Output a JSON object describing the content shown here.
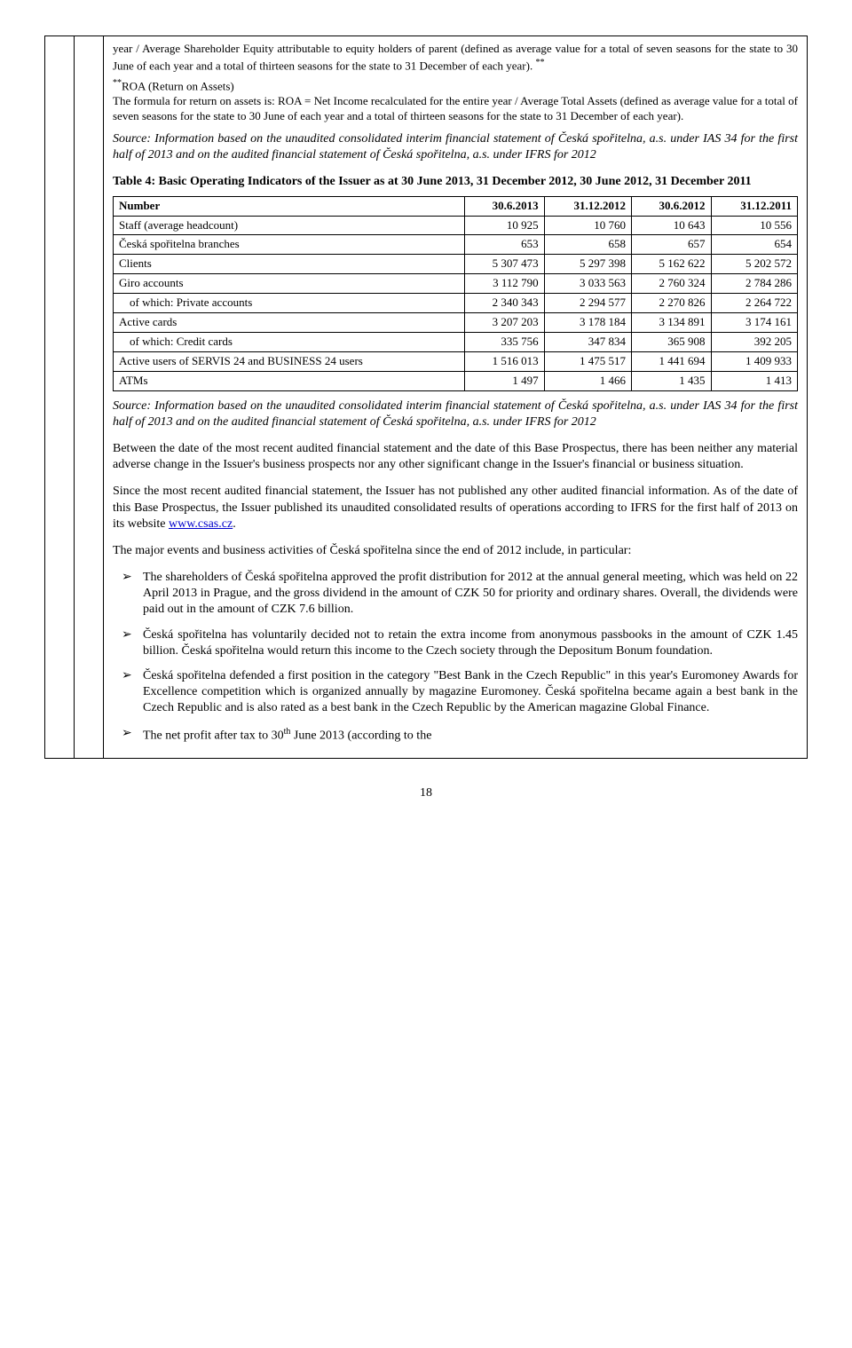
{
  "footnote1": "year / Average Shareholder Equity attributable to equity holders of parent (defined as average value for a total of seven seasons for the state to 30 June of each year and a total of thirteen seasons for the state to 31 December of each year).",
  "footnote1_marker": "**",
  "footnote2_marker": "**",
  "footnote2_label": "ROA (Return on Assets)",
  "footnote2_body": "The formula for return on assets is: ROA = Net Income recalculated for the entire year / Average Total Assets (defined as average value for a total of seven seasons for the state to 30 June of each year and a total of thirteen seasons for the state to 31 December of each year).",
  "source_text": "Source: Information based on the unaudited consolidated interim financial statement of Česká spořitelna, a.s. under IAS 34 for the first half of 2013 and on the audited financial statement of Česká spořitelna, a.s. under IFRS for 2012",
  "table4_title": "Table 4: Basic Operating Indicators of the Issuer as at 30 June 2013, 31 December 2012, 30 June 2012, 31 December 2011",
  "table4": {
    "header": [
      "Number",
      "30.6.2013",
      "31.12.2012",
      "30.6.2012",
      "31.12.2011"
    ],
    "rows": [
      {
        "label": "Staff (average headcount)",
        "vals": [
          "10 925",
          "10 760",
          "10 643",
          "10 556"
        ],
        "indent": false
      },
      {
        "label": "Česká spořitelna branches",
        "vals": [
          "653",
          "658",
          "657",
          "654"
        ],
        "indent": false
      },
      {
        "label": "Clients",
        "vals": [
          "5 307 473",
          "5 297 398",
          "5 162 622",
          "5 202 572"
        ],
        "indent": false
      },
      {
        "label": "Giro accounts",
        "vals": [
          "3 112 790",
          "3 033 563",
          "2 760 324",
          "2 784 286"
        ],
        "indent": false
      },
      {
        "label": "of which: Private accounts",
        "vals": [
          "2 340 343",
          "2 294 577",
          "2 270 826",
          "2 264 722"
        ],
        "indent": true
      },
      {
        "label": "Active cards",
        "vals": [
          "3 207 203",
          "3 178 184",
          "3 134 891",
          "3 174 161"
        ],
        "indent": false
      },
      {
        "label": "of which: Credit cards",
        "vals": [
          "335 756",
          "347 834",
          "365 908",
          "392 205"
        ],
        "indent": true
      },
      {
        "label": "Active users of SERVIS 24 and BUSINESS 24 users",
        "vals": [
          "1 516 013",
          "1 475 517",
          "1 441 694",
          "1 409 933"
        ],
        "indent": false
      },
      {
        "label": "ATMs",
        "vals": [
          "1 497",
          "1 466",
          "1 435",
          "1 413"
        ],
        "indent": false
      }
    ]
  },
  "para1": "Between the date of the most recent audited financial statement and the date of this Base Prospectus, there has been neither any material adverse change in the Issuer's business prospects nor any other significant change in the Issuer's financial or business situation.",
  "para2_a": "Since the most recent audited financial statement, the Issuer has not published any other audited financial information. As of the date of this Base Prospectus, the Issuer published its unaudited consolidated results of operations according to IFRS for the first half of 2013 on its website ",
  "para2_link": "www.csas.cz",
  "para2_b": ".",
  "para3": "The major events and business activities of Česká spořitelna since the end of 2012 include, in particular:",
  "bullets": [
    "The shareholders of Česká spořitelna approved the profit distribution for 2012 at the annual general meeting, which was held on 22 April 2013 in Prague, and the gross dividend in the amount of CZK 50 for priority and ordinary shares. Overall, the dividends were paid out in the amount of CZK 7.6 billion.",
    "Česká spořitelna has voluntarily decided not to retain the extra income from anonymous passbooks in the amount of CZK 1.45 billion. Česká spořitelna would return this income to the Czech society through the Depositum Bonum foundation.",
    "Česká spořitelna defended a first position in the category \"Best Bank in the Czech Republic\" in this year's Euromoney Awards for Excellence competition which is organized annually by magazine Euromoney. Česká spořitelna became again a best bank in the Czech Republic and is also rated as a best bank in the Czech Republic by the American magazine Global Finance."
  ],
  "bullet_last_a": "The net profit after tax to 30",
  "bullet_last_sup": "th",
  "bullet_last_b": " June 2013 (according to the",
  "page_number": "18"
}
